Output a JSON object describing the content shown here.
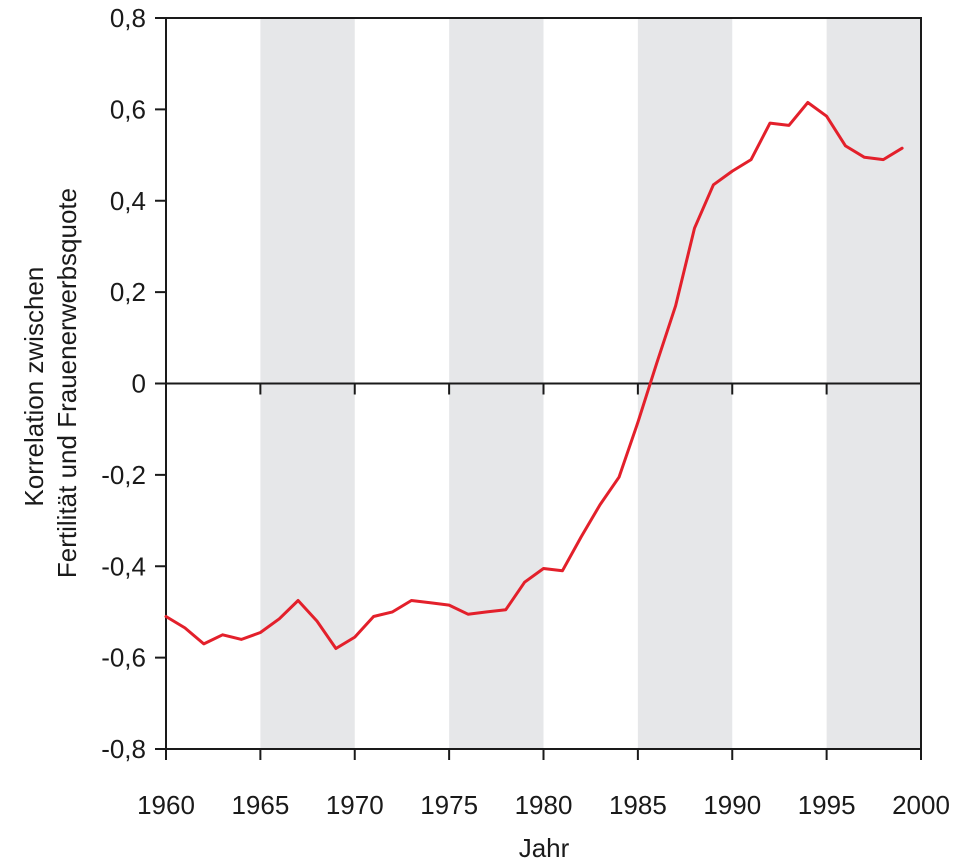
{
  "chart_data": {
    "type": "line",
    "title": "",
    "xlabel": "Jahr",
    "ylabel_lines": [
      "Korrelation zwischen",
      "Fertilität und Frauenerwerbsquote"
    ],
    "xlim": [
      1960,
      2000
    ],
    "ylim": [
      -0.8,
      0.8
    ],
    "x_ticks": [
      1960,
      1965,
      1970,
      1975,
      1980,
      1985,
      1990,
      1995,
      2000
    ],
    "x_tick_labels": [
      "1960",
      "1965",
      "1970",
      "1975",
      "1980",
      "1985",
      "1990",
      "1995",
      "2000"
    ],
    "y_ticks": [
      0.8,
      0.6,
      0.4,
      0.2,
      0,
      -0.2,
      -0.4,
      -0.6,
      -0.8
    ],
    "y_tick_labels": [
      "0,8",
      "0,6",
      "0,4",
      "0,2",
      "0",
      "-0,2",
      "-0,4",
      "-0,6",
      "-0,8"
    ],
    "shaded_bands": [
      [
        1965,
        1970
      ],
      [
        1975,
        1980
      ],
      [
        1985,
        1990
      ],
      [
        1995,
        2000
      ]
    ],
    "grid": false,
    "colors": {
      "line": "#e3202b",
      "band": "#e6e7e9",
      "axis": "#1a1a1a"
    },
    "series": [
      {
        "x": [
          1960,
          1961,
          1962,
          1963,
          1964,
          1965,
          1966,
          1967,
          1968,
          1969,
          1970,
          1971,
          1972,
          1973,
          1974,
          1975,
          1976,
          1977,
          1978,
          1979,
          1980,
          1981,
          1982,
          1983,
          1984,
          1985,
          1986,
          1987,
          1988,
          1989,
          1990,
          1991,
          1992,
          1993,
          1994,
          1995,
          1996,
          1997,
          1998,
          1999
        ],
        "values": [
          -0.51,
          -0.535,
          -0.57,
          -0.55,
          -0.56,
          -0.545,
          -0.515,
          -0.475,
          -0.52,
          -0.58,
          -0.555,
          -0.51,
          -0.5,
          -0.475,
          -0.48,
          -0.485,
          -0.505,
          -0.5,
          -0.495,
          -0.435,
          -0.405,
          -0.41,
          -0.335,
          -0.265,
          -0.205,
          -0.085,
          0.045,
          0.17,
          0.34,
          0.435,
          0.465,
          0.49,
          0.57,
          0.565,
          0.615,
          0.585,
          0.52,
          0.495,
          0.49,
          0.515
        ]
      }
    ]
  }
}
